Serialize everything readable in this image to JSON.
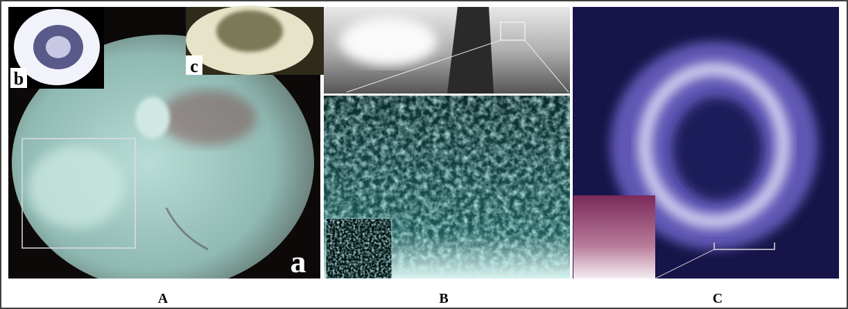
{
  "panels": [
    {
      "caption": "A",
      "main_label": "a",
      "insets": [
        "b",
        "c"
      ]
    },
    {
      "caption": "B"
    },
    {
      "caption": "C"
    }
  ]
}
